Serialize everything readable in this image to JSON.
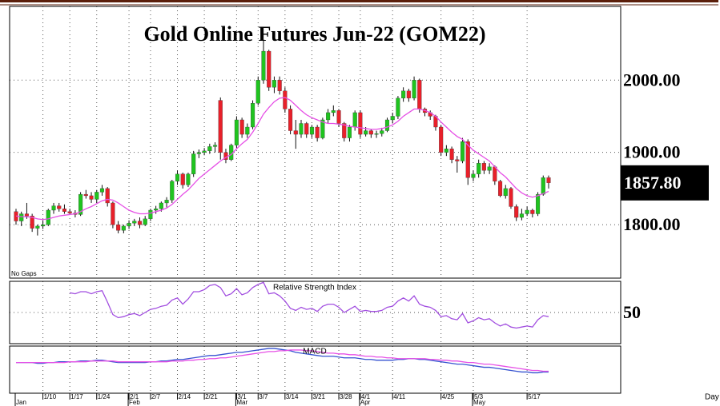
{
  "chart_data": [
    {
      "type": "candlestick",
      "title": "Gold Online Futures Jun-22 (GOM22)",
      "note": "No Gaps",
      "x_label": "Day",
      "categories": [
        null,
        null,
        null,
        null,
        null,
        "1/10",
        null,
        null,
        null,
        null,
        "1/17",
        null,
        null,
        null,
        null,
        "1/24",
        null,
        null,
        null,
        null,
        null,
        "2/1",
        null,
        null,
        null,
        "2/7",
        null,
        null,
        null,
        null,
        "2/14",
        null,
        null,
        null,
        null,
        "2/21",
        null,
        null,
        null,
        null,
        null,
        "3/1",
        null,
        null,
        null,
        "3/7",
        null,
        null,
        null,
        null,
        "3/14",
        null,
        null,
        null,
        null,
        "3/21",
        null,
        null,
        null,
        null,
        "3/28",
        null,
        null,
        null,
        "4/1",
        null,
        null,
        null,
        null,
        null,
        "4/11",
        null,
        null,
        null,
        null,
        null,
        null,
        null,
        null,
        "4/25",
        null,
        null,
        null,
        null,
        null,
        "5/3",
        null,
        null,
        null,
        null,
        null,
        null,
        null,
        null,
        null,
        "5/17",
        null,
        null,
        null,
        null
      ],
      "months": [
        "Jan",
        null,
        null,
        null,
        null,
        null,
        null,
        null,
        null,
        null,
        null,
        null,
        null,
        null,
        null,
        null,
        null,
        null,
        null,
        null,
        null,
        "Feb",
        null,
        null,
        null,
        null,
        null,
        null,
        null,
        null,
        null,
        null,
        null,
        null,
        null,
        null,
        null,
        null,
        null,
        null,
        null,
        "Mar",
        null,
        null,
        null,
        null,
        null,
        null,
        null,
        null,
        null,
        null,
        null,
        null,
        null,
        null,
        null,
        null,
        null,
        null,
        null,
        null,
        null,
        null,
        "Apr",
        null,
        null,
        null,
        null,
        null,
        null,
        null,
        null,
        null,
        null,
        null,
        null,
        null,
        null,
        null,
        null,
        null,
        null,
        null,
        null,
        "May",
        null,
        null,
        null,
        null,
        null,
        null,
        null,
        null,
        null,
        null,
        null,
        null,
        null,
        null
      ],
      "open": [
        1818,
        1805,
        1815,
        1812,
        1795,
        1798,
        1800,
        1820,
        1826,
        1822,
        1818,
        1816,
        1814,
        1842,
        1840,
        1835,
        1845,
        1850,
        1830,
        1800,
        1792,
        1798,
        1802,
        1805,
        1800,
        1808,
        1820,
        1822,
        1830,
        1834,
        1860,
        1870,
        1855,
        1870,
        1898,
        1900,
        1902,
        1908,
        1972,
        1900,
        1890,
        1910,
        1945,
        1925,
        1935,
        1968,
        2000,
        2040,
        1990,
        2000,
        1985,
        1960,
        1930,
        1925,
        1940,
        1925,
        1935,
        1920,
        1945,
        1955,
        1958,
        1940,
        1920,
        1935,
        1955,
        1925,
        1930,
        1925,
        1926,
        1930,
        1945,
        1950,
        1975,
        1985,
        1975,
        2000,
        1960,
        1955,
        1950,
        1935,
        1900,
        1905,
        1890,
        1888,
        1915,
        1865,
        1870,
        1885,
        1875,
        1880,
        1860,
        1840,
        1850,
        1825,
        1810,
        1815,
        1820,
        1815,
        1842,
        1865
      ],
      "high": [
        1822,
        1818,
        1830,
        1815,
        1800,
        1806,
        1822,
        1830,
        1830,
        1828,
        1822,
        1820,
        1845,
        1848,
        1845,
        1848,
        1855,
        1852,
        1832,
        1805,
        1800,
        1806,
        1808,
        1810,
        1812,
        1822,
        1826,
        1832,
        1838,
        1862,
        1875,
        1872,
        1872,
        1902,
        1904,
        1906,
        1912,
        1914,
        1976,
        1905,
        1912,
        1950,
        1948,
        1940,
        1972,
        2005,
        2055,
        2042,
        2005,
        2005,
        1990,
        1965,
        1945,
        1945,
        1942,
        1938,
        1938,
        1948,
        1960,
        1965,
        1960,
        1942,
        1938,
        1958,
        1958,
        1935,
        1932,
        1930,
        1934,
        1948,
        1955,
        1978,
        1990,
        1988,
        2005,
        2002,
        1962,
        1958,
        1952,
        1938,
        1910,
        1908,
        1895,
        1920,
        1918,
        1875,
        1890,
        1888,
        1885,
        1882,
        1862,
        1855,
        1852,
        1828,
        1822,
        1825,
        1822,
        1845,
        1868,
        1868
      ],
      "low": [
        1800,
        1798,
        1808,
        1790,
        1785,
        1794,
        1798,
        1815,
        1818,
        1815,
        1814,
        1810,
        1812,
        1836,
        1830,
        1830,
        1840,
        1825,
        1795,
        1788,
        1788,
        1794,
        1798,
        1795,
        1798,
        1805,
        1815,
        1818,
        1824,
        1830,
        1855,
        1850,
        1852,
        1866,
        1892,
        1896,
        1898,
        1900,
        1890,
        1885,
        1888,
        1906,
        1920,
        1920,
        1932,
        1965,
        1995,
        1985,
        1982,
        1980,
        1955,
        1925,
        1905,
        1920,
        1920,
        1920,
        1915,
        1918,
        1940,
        1950,
        1935,
        1915,
        1915,
        1930,
        1920,
        1922,
        1920,
        1920,
        1922,
        1928,
        1940,
        1946,
        1970,
        1970,
        1972,
        1955,
        1950,
        1945,
        1930,
        1895,
        1895,
        1885,
        1872,
        1885,
        1855,
        1860,
        1865,
        1870,
        1870,
        1855,
        1838,
        1836,
        1822,
        1805,
        1806,
        1812,
        1810,
        1812,
        1840,
        1850
      ],
      "close": [
        1805,
        1815,
        1812,
        1795,
        1798,
        1800,
        1820,
        1826,
        1822,
        1818,
        1816,
        1814,
        1842,
        1840,
        1835,
        1845,
        1850,
        1830,
        1800,
        1792,
        1798,
        1802,
        1805,
        1800,
        1808,
        1820,
        1822,
        1830,
        1834,
        1860,
        1870,
        1855,
        1870,
        1898,
        1900,
        1902,
        1908,
        1910,
        1900,
        1890,
        1910,
        1945,
        1925,
        1935,
        1968,
        2000,
        2040,
        1990,
        2000,
        1985,
        1960,
        1930,
        1925,
        1940,
        1925,
        1935,
        1920,
        1945,
        1955,
        1958,
        1940,
        1920,
        1935,
        1955,
        1925,
        1930,
        1925,
        1926,
        1930,
        1945,
        1950,
        1975,
        1985,
        1975,
        2000,
        1960,
        1955,
        1950,
        1935,
        1900,
        1905,
        1890,
        1888,
        1915,
        1865,
        1870,
        1885,
        1875,
        1880,
        1860,
        1840,
        1850,
        1825,
        1810,
        1815,
        1820,
        1815,
        1842,
        1865,
        1857.8
      ],
      "close_label": "1857.80",
      "up_color": "#1fc41f",
      "down_color": "#e8202a",
      "ma": {
        "color": "#e650e6",
        "values": [
          1812,
          1811,
          1811,
          1810,
          1808,
          1807,
          1808,
          1810,
          1812,
          1813,
          1814,
          1815,
          1818,
          1822,
          1825,
          1829,
          1833,
          1835,
          1834,
          1830,
          1825,
          1820,
          1817,
          1815,
          1815,
          1816,
          1818,
          1820,
          1823,
          1828,
          1835,
          1842,
          1848,
          1856,
          1864,
          1870,
          1876,
          1882,
          1888,
          1893,
          1897,
          1905,
          1912,
          1918,
          1928,
          1940,
          1953,
          1962,
          1970,
          1975,
          1976,
          1972,
          1965,
          1958,
          1952,
          1948,
          1945,
          1942,
          1940,
          1940,
          1939,
          1938,
          1936,
          1935,
          1934,
          1933,
          1932,
          1932,
          1933,
          1935,
          1938,
          1943,
          1950,
          1955,
          1960,
          1960,
          1958,
          1955,
          1950,
          1942,
          1935,
          1928,
          1922,
          1918,
          1910,
          1903,
          1898,
          1893,
          1888,
          1880,
          1872,
          1866,
          1858,
          1850,
          1844,
          1840,
          1838,
          1840,
          1843,
          1846
        ]
      },
      "ylim": [
        1726,
        2102
      ],
      "yticks": [
        {
          "value": 2000,
          "label": "2000.00"
        },
        {
          "value": 1900,
          "label": "1900.00"
        },
        {
          "value": 1800,
          "label": "1800.00"
        }
      ],
      "grid": true
    },
    {
      "type": "line",
      "title": "Relative Strength Index",
      "color": "#a24fe0",
      "values": [
        null,
        null,
        null,
        null,
        null,
        null,
        null,
        null,
        null,
        null,
        69,
        68,
        70,
        70,
        68,
        70,
        71,
        60,
        48,
        45,
        46,
        48,
        49,
        47,
        50,
        53,
        54,
        56,
        57,
        62,
        64,
        58,
        63,
        70,
        70,
        72,
        76,
        77,
        74,
        66,
        68,
        73,
        67,
        69,
        74,
        77,
        79,
        68,
        69,
        66,
        61,
        54,
        52,
        55,
        53,
        54,
        51,
        56,
        58,
        58,
        55,
        50,
        53,
        56,
        51,
        52,
        51,
        51,
        52,
        55,
        56,
        61,
        64,
        61,
        66,
        58,
        56,
        55,
        52,
        46,
        47,
        44,
        43,
        49,
        40,
        42,
        45,
        43,
        44,
        40,
        37,
        39,
        36,
        35,
        36,
        37,
        36,
        43,
        47,
        46
      ],
      "ylim": [
        20,
        80
      ],
      "yticks": [
        50
      ],
      "grid": true
    },
    {
      "type": "line",
      "title": "MACD",
      "series": [
        {
          "color": "#3552d0",
          "values": [
            0,
            0,
            0,
            0,
            -1,
            -1,
            0,
            0,
            1,
            1,
            1,
            1,
            2,
            2,
            2,
            3,
            3,
            2,
            1,
            0,
            0,
            0,
            0,
            0,
            0,
            1,
            1,
            2,
            2,
            3,
            4,
            4,
            5,
            6,
            7,
            8,
            9,
            9,
            10,
            11,
            12,
            13,
            13,
            14,
            15,
            16,
            17,
            18,
            18,
            17,
            16,
            15,
            13,
            12,
            11,
            10,
            9,
            8,
            8,
            8,
            7,
            6,
            6,
            6,
            5,
            4,
            4,
            3,
            3,
            3,
            3,
            4,
            4,
            5,
            5,
            4,
            4,
            3,
            2,
            1,
            0,
            -1,
            -2,
            -2,
            -3,
            -4,
            -5,
            -6,
            -6,
            -7,
            -8,
            -9,
            -10,
            -11,
            -12,
            -12,
            -13,
            -13,
            -12,
            -12
          ]
        },
        {
          "color": "#e650e6",
          "values": [
            0,
            0,
            0,
            0,
            0,
            0,
            0,
            0,
            0,
            0,
            1,
            1,
            1,
            1,
            2,
            2,
            2,
            2,
            2,
            1,
            1,
            1,
            1,
            1,
            1,
            1,
            1,
            1,
            1,
            2,
            2,
            2,
            3,
            3,
            4,
            4,
            5,
            5,
            6,
            6,
            7,
            8,
            9,
            10,
            11,
            12,
            13,
            14,
            14,
            15,
            15,
            16,
            16,
            16,
            15,
            15,
            14,
            13,
            12,
            12,
            11,
            11,
            10,
            10,
            9,
            8,
            8,
            7,
            7,
            6,
            6,
            5,
            5,
            5,
            5,
            5,
            5,
            4,
            4,
            3,
            3,
            2,
            2,
            1,
            0,
            0,
            -1,
            -2,
            -2,
            -3,
            -4,
            -5,
            -6,
            -7,
            -8,
            -9,
            -10,
            -10,
            -11,
            -11
          ]
        }
      ],
      "ylim": [
        -39,
        21
      ]
    }
  ]
}
